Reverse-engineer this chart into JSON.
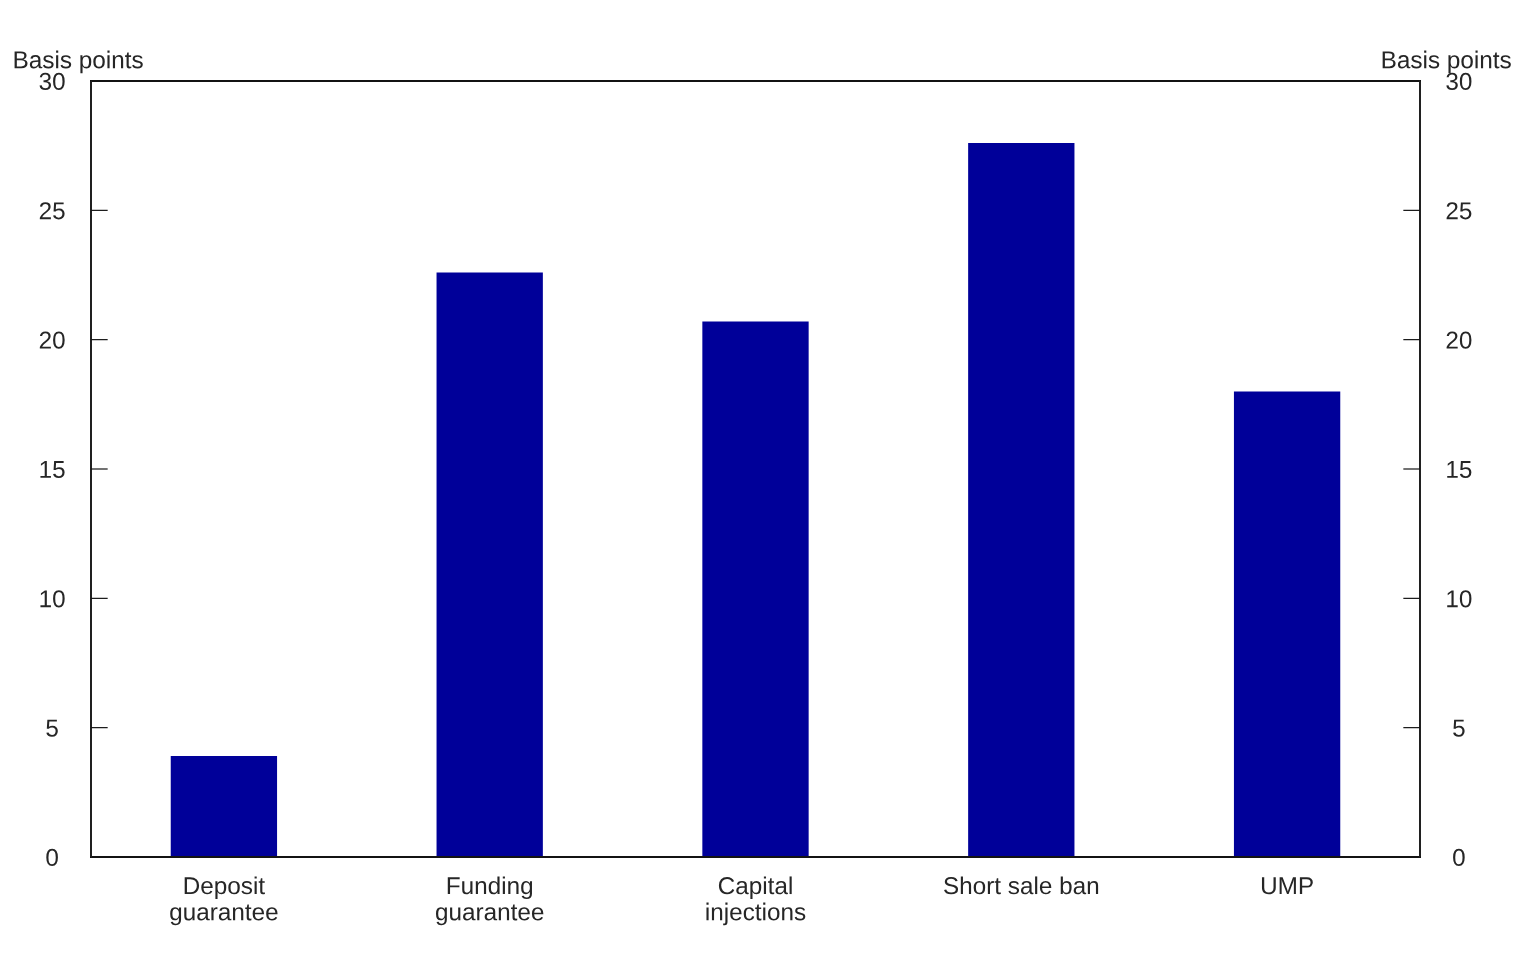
{
  "chart_data": {
    "type": "bar",
    "categories": [
      "Deposit\nguarantee",
      "Funding\nguarantee",
      "Capital\ninjections",
      "Short sale ban",
      "UMP"
    ],
    "values": [
      3.9,
      22.6,
      20.7,
      27.6,
      18.0
    ],
    "color": "#000099",
    "ylabel": "Basis points",
    "y2label": "Basis points",
    "ylim": [
      0,
      30
    ],
    "yticks": [
      0,
      5,
      10,
      15,
      20,
      25,
      30
    ],
    "y2lim": [
      0,
      30
    ],
    "y2ticks": [
      0,
      5,
      10,
      15,
      20,
      25,
      30
    ],
    "grid": false,
    "legend": false
  }
}
